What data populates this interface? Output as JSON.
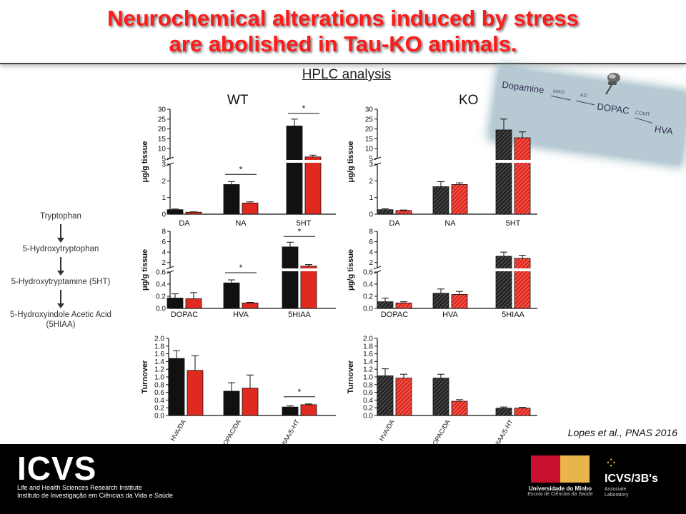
{
  "title": {
    "line1": "Neurochemical alterations induced by stress",
    "line2": "are abolished in Tau-KO animals."
  },
  "subtitle": "HPLC analysis",
  "group_labels": {
    "wt": "WT",
    "ko": "KO"
  },
  "pathway": [
    "Tryptophan",
    "5-Hydroxytryptophan",
    "5-Hydroxytryptamine (5HT)",
    "5-Hydroxyindole Acetic Acid",
    "(5HIAA)"
  ],
  "dopamine_pathway": {
    "dopamine": "Dopamine",
    "mao": "MAO",
    "ad": "AD",
    "dopac": "DOPAC",
    "comt": "COMT",
    "hva": "HVA"
  },
  "citation": "Lopes et al., PNAS 2016",
  "footer": {
    "icvs": "ICVS",
    "icvs_line1": "Life and Health Sciences Research Institute",
    "icvs_line2": "Instituto de Investigação em Ciências da Vida e Saúde",
    "uminho_name": "Universidade do Minho",
    "uminho_school": "Escola de Ciências da Saúde",
    "icvs3bs": "ICVS/3B's",
    "lab_line1": "Associate",
    "lab_line2": "Laboratory"
  },
  "colors": {
    "title": "#ff1a1a",
    "control": "#111111",
    "stress": "#e02a20",
    "footer_bg": "#000000"
  },
  "chart_data": [
    {
      "id": "wt_amines",
      "type": "bar",
      "group": "WT",
      "ylabel": "μg/g tissue",
      "categories": [
        "DA",
        "NA",
        "5HT"
      ],
      "broken_axis": true,
      "ylim_lower": [
        0,
        3
      ],
      "ylim_upper": [
        5,
        30
      ],
      "upper_ticks": [
        5,
        10,
        15,
        20,
        25,
        30
      ],
      "lower_ticks": [
        0,
        1,
        2,
        3
      ],
      "series": [
        {
          "values": [
            0.27,
            1.78,
            21.5
          ],
          "errors": [
            0.04,
            0.18,
            3.5
          ]
        },
        {
          "values": [
            0.12,
            0.67,
            5.8
          ],
          "errors": [
            0.02,
            0.07,
            0.9
          ]
        }
      ],
      "significance": [
        {
          "category": 1,
          "label": "*"
        },
        {
          "category": 2,
          "label": "*"
        }
      ]
    },
    {
      "id": "ko_amines",
      "type": "bar",
      "group": "KO",
      "ylabel": "μg/g tissue",
      "categories": [
        "DA",
        "NA",
        "5HT"
      ],
      "broken_axis": true,
      "ylim_lower": [
        0,
        3
      ],
      "ylim_upper": [
        5,
        30
      ],
      "upper_ticks": [
        5,
        10,
        15,
        20,
        25,
        30
      ],
      "lower_ticks": [
        0,
        1,
        2,
        3
      ],
      "series": [
        {
          "values": [
            0.27,
            1.65,
            19.5
          ],
          "errors": [
            0.05,
            0.3,
            5.5
          ]
        },
        {
          "values": [
            0.22,
            1.78,
            15.5
          ],
          "errors": [
            0.03,
            0.1,
            3.0
          ]
        }
      ],
      "significance": []
    },
    {
      "id": "wt_metabolites",
      "type": "bar",
      "group": "WT",
      "ylabel": "μg/g tissue",
      "categories": [
        "DOPAC",
        "HVA",
        "5HIAA"
      ],
      "broken_axis": true,
      "ylim_lower": [
        0,
        0.6
      ],
      "ylim_upper": [
        1,
        8
      ],
      "upper_ticks": [
        2,
        4,
        6,
        8
      ],
      "lower_ticks": [
        0.0,
        0.2,
        0.4,
        0.6
      ],
      "series": [
        {
          "values": [
            0.17,
            0.42,
            5.0
          ],
          "errors": [
            0.07,
            0.05,
            0.9
          ]
        },
        {
          "values": [
            0.16,
            0.09,
            1.3
          ],
          "errors": [
            0.1,
            0.01,
            0.3
          ]
        }
      ],
      "significance": [
        {
          "category": 1,
          "label": "*"
        },
        {
          "category": 2,
          "label": "*"
        }
      ]
    },
    {
      "id": "ko_metabolites",
      "type": "bar",
      "group": "KO",
      "ylabel": "μg/g tissue",
      "categories": [
        "DOPAC",
        "HVA",
        "5HIAA"
      ],
      "broken_axis": true,
      "ylim_lower": [
        0,
        0.6
      ],
      "ylim_upper": [
        1,
        8
      ],
      "upper_ticks": [
        2,
        4,
        6,
        8
      ],
      "lower_ticks": [
        0.0,
        0.2,
        0.4,
        0.6
      ],
      "series": [
        {
          "values": [
            0.11,
            0.25,
            3.2
          ],
          "errors": [
            0.06,
            0.07,
            0.8
          ]
        },
        {
          "values": [
            0.09,
            0.23,
            2.8
          ],
          "errors": [
            0.02,
            0.05,
            0.6
          ]
        }
      ],
      "significance": []
    },
    {
      "id": "wt_turnover",
      "type": "bar",
      "group": "WT",
      "ylabel": "Turnover",
      "categories": [
        "HVA/DA",
        "DOPAC/DA",
        "5-HIAA/5-HT"
      ],
      "broken_axis": false,
      "ylim": [
        0,
        2.0
      ],
      "ticks": [
        0.0,
        0.2,
        0.4,
        0.6,
        0.8,
        1.0,
        1.2,
        1.4,
        1.6,
        1.8,
        2.0
      ],
      "series": [
        {
          "values": [
            1.48,
            0.63,
            0.22
          ],
          "errors": [
            0.2,
            0.22,
            0.03
          ]
        },
        {
          "values": [
            1.17,
            0.71,
            0.28
          ],
          "errors": [
            0.38,
            0.34,
            0.02
          ]
        }
      ],
      "significance": [
        {
          "category": 2,
          "label": "*"
        }
      ]
    },
    {
      "id": "ko_turnover",
      "type": "bar",
      "group": "KO",
      "ylabel": "Turnover",
      "categories": [
        "HVA/DA",
        "DOPAC/DA",
        "5-HIAA/5-HT"
      ],
      "broken_axis": false,
      "ylim": [
        0,
        2.0
      ],
      "ticks": [
        0.0,
        0.2,
        0.4,
        0.6,
        0.8,
        1.0,
        1.2,
        1.4,
        1.6,
        1.8,
        2.0
      ],
      "series": [
        {
          "values": [
            1.03,
            0.97,
            0.19
          ],
          "errors": [
            0.18,
            0.1,
            0.03
          ]
        },
        {
          "values": [
            0.97,
            0.37,
            0.19
          ],
          "errors": [
            0.1,
            0.04,
            0.02
          ]
        }
      ],
      "significance": []
    }
  ]
}
